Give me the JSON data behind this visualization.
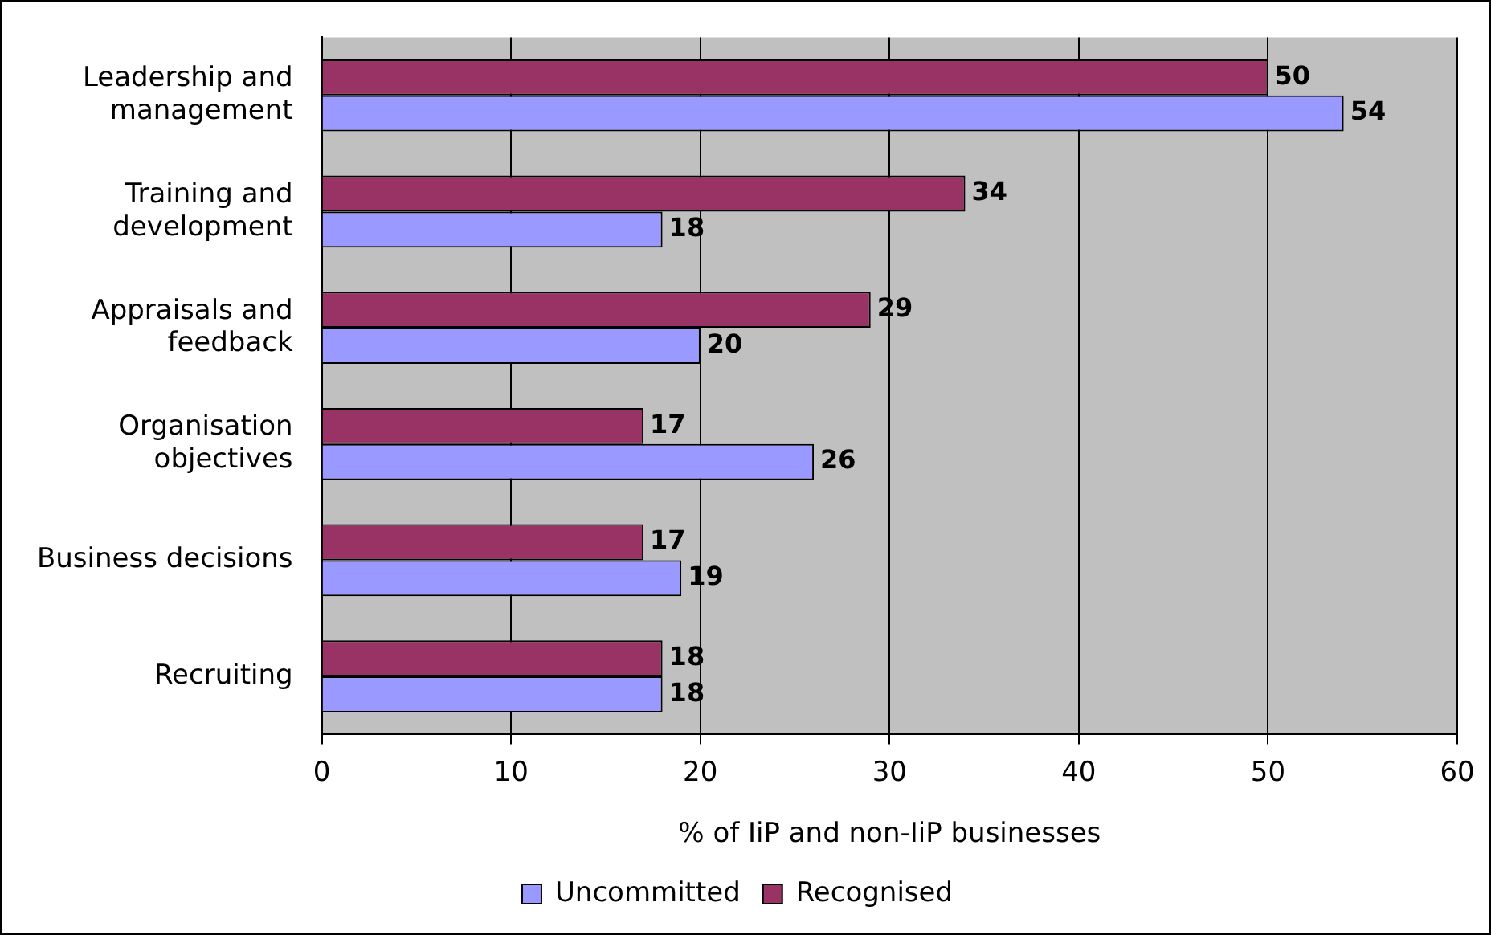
{
  "chart_data": {
    "type": "bar",
    "orientation": "horizontal",
    "xlabel": "% of IiP and non-IiP businesses",
    "categories": [
      "Leadership and management",
      "Training and development",
      "Appraisals and feedback",
      "Organisation objectives",
      "Business decisions",
      "Recruiting"
    ],
    "series": [
      {
        "name": "Recognised",
        "color": "#993366",
        "values": [
          50,
          34,
          29,
          17,
          17,
          18
        ]
      },
      {
        "name": "Uncommitted",
        "color": "#9999ff",
        "values": [
          54,
          18,
          20,
          26,
          19,
          18
        ]
      }
    ],
    "xlim": [
      0,
      60
    ],
    "xticks": [
      0,
      10,
      20,
      30,
      40,
      50,
      60
    ],
    "grid": "x",
    "legend": "bottom",
    "data_labels": true
  }
}
